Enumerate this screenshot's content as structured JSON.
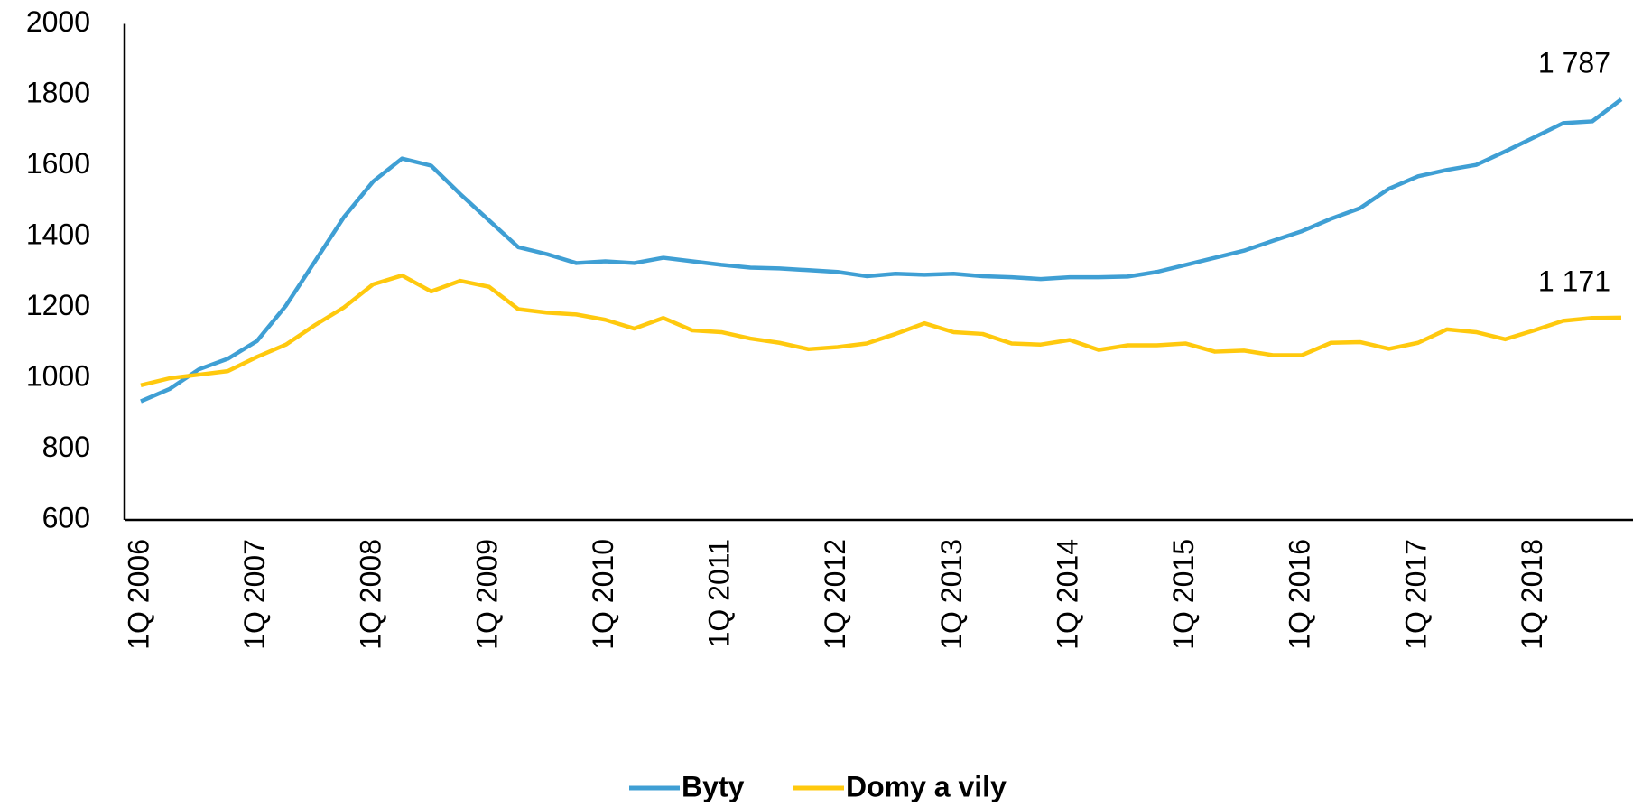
{
  "chart_data": {
    "type": "line",
    "categories": [
      "1Q 2006",
      null,
      null,
      null,
      "1Q 2007",
      null,
      null,
      null,
      "1Q 2008",
      null,
      null,
      null,
      "1Q 2009",
      null,
      null,
      null,
      "1Q 2010",
      null,
      null,
      null,
      "1Q 2011",
      null,
      null,
      null,
      "1Q 2012",
      null,
      null,
      null,
      "1Q 2013",
      null,
      null,
      null,
      "1Q 2014",
      null,
      null,
      null,
      "1Q 2015",
      null,
      null,
      null,
      "1Q 2016",
      null,
      null,
      null,
      "1Q 2017",
      null,
      null,
      null,
      "1Q 2018",
      null,
      null,
      null
    ],
    "series": [
      {
        "name": "Byty",
        "color": "#3f9fd4",
        "values": [
          935,
          970,
          1025,
          1055,
          1105,
          1205,
          1330,
          1455,
          1555,
          1620,
          1600,
          1520,
          1445,
          1370,
          1350,
          1325,
          1330,
          1325,
          1340,
          1330,
          1320,
          1312,
          1310,
          1305,
          1300,
          1288,
          1295,
          1292,
          1295,
          1288,
          1285,
          1280,
          1285,
          1285,
          1287,
          1300,
          1320,
          1340,
          1360,
          1388,
          1415,
          1450,
          1480,
          1535,
          1570,
          1588,
          1602,
          1640,
          1680,
          1720,
          1725,
          1787
        ],
        "value_labels": [
          null,
          null,
          null,
          null,
          null,
          null,
          null,
          null,
          null,
          null,
          null,
          null,
          null,
          null,
          null,
          null,
          null,
          null,
          null,
          null,
          null,
          null,
          null,
          null,
          null,
          null,
          null,
          null,
          null,
          null,
          null,
          null,
          null,
          null,
          null,
          null,
          null,
          null,
          null,
          null,
          null,
          null,
          null,
          null,
          null,
          null,
          null,
          null,
          null,
          null,
          null,
          "1 787"
        ]
      },
      {
        "name": "Domy a vily",
        "color": "#ffc90e",
        "values": [
          980,
          1000,
          1010,
          1020,
          1060,
          1095,
          1150,
          1200,
          1265,
          1290,
          1245,
          1275,
          1258,
          1195,
          1185,
          1180,
          1165,
          1140,
          1170,
          1135,
          1130,
          1112,
          1100,
          1082,
          1088,
          1098,
          1125,
          1155,
          1130,
          1125,
          1098,
          1095,
          1108,
          1080,
          1093,
          1093,
          1098,
          1075,
          1078,
          1065,
          1065,
          1100,
          1102,
          1083,
          1100,
          1138,
          1130,
          1110,
          1135,
          1162,
          1170,
          1171
        ],
        "value_labels": [
          null,
          null,
          null,
          null,
          null,
          null,
          null,
          null,
          null,
          null,
          null,
          null,
          null,
          null,
          null,
          null,
          null,
          null,
          null,
          null,
          null,
          null,
          null,
          null,
          null,
          null,
          null,
          null,
          null,
          null,
          null,
          null,
          null,
          null,
          null,
          null,
          null,
          null,
          null,
          null,
          null,
          null,
          null,
          null,
          null,
          null,
          null,
          null,
          null,
          null,
          null,
          "1 171"
        ]
      }
    ],
    "ylim": [
      600,
      2000
    ],
    "yticks": [
      600,
      800,
      1000,
      1200,
      1400,
      1600,
      1800,
      2000
    ],
    "grid": false,
    "legend": "bottom"
  }
}
